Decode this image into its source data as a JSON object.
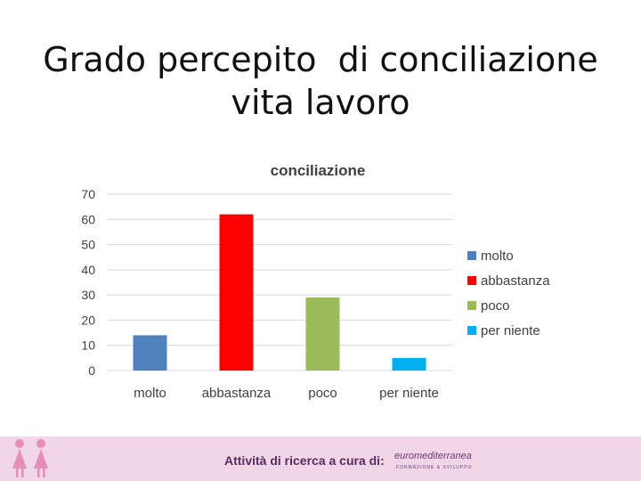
{
  "slide": {
    "title_line1": "Grado percepito  di conciliazione",
    "title_line2": "vita lavoro"
  },
  "footer": {
    "text": "Attività di ricerca a cura di:",
    "logo_text": "euromediterranea",
    "logo_sub": "FORMAZIONE & SVILUPPO",
    "logo_icon": "people-figures-icon"
  },
  "chart_data": {
    "type": "bar",
    "title": "conciliazione",
    "xlabel": "",
    "ylabel": "",
    "categories": [
      "molto",
      "abbastanza",
      "poco",
      "per niente"
    ],
    "values": [
      14,
      62,
      29,
      5
    ],
    "colors": [
      "#4f81bd",
      "#ff0000",
      "#9bbb59",
      "#00b0f0"
    ],
    "ylim": [
      0,
      70
    ],
    "yticks": [
      0,
      10,
      20,
      30,
      40,
      50,
      60,
      70
    ],
    "grid": true,
    "legend": {
      "position": "right",
      "entries": [
        "molto",
        "abbastanza",
        "poco",
        "per niente"
      ]
    }
  }
}
